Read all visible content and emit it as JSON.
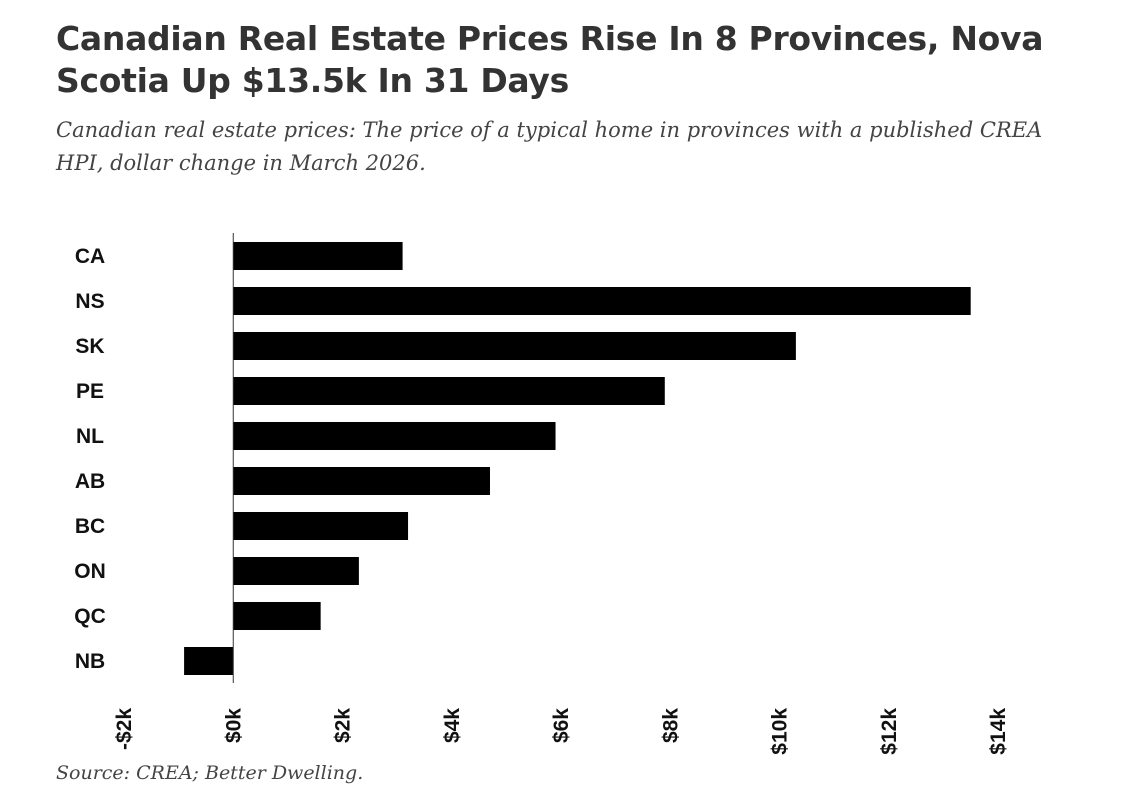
{
  "title": "Canadian Real Estate Prices Rise In 8 Provinces, Nova Scotia Up $13.5k In 31 Days",
  "subtitle": "Canadian real estate prices: The price of a typical home in provinces with a published CREA HPI, dollar change in March 2026.",
  "source": "Source: CREA; Better Dwelling.",
  "chart_data": {
    "type": "bar",
    "orientation": "horizontal",
    "categories": [
      "CA",
      "NS",
      "SK",
      "PE",
      "NL",
      "AB",
      "BC",
      "ON",
      "QC",
      "NB"
    ],
    "values": [
      3100,
      13500,
      10300,
      7900,
      5900,
      4700,
      3200,
      2300,
      1600,
      -900
    ],
    "xlim": [
      -2000,
      14000
    ],
    "ticks": [
      -2000,
      0,
      2000,
      4000,
      6000,
      8000,
      10000,
      12000,
      14000
    ],
    "tick_labels": [
      "-$2k",
      "$0k",
      "$2k",
      "$4k",
      "$6k",
      "$8k",
      "$10k",
      "$12k",
      "$14k"
    ],
    "bar_color": "#000000",
    "grid": false,
    "legend": false
  }
}
